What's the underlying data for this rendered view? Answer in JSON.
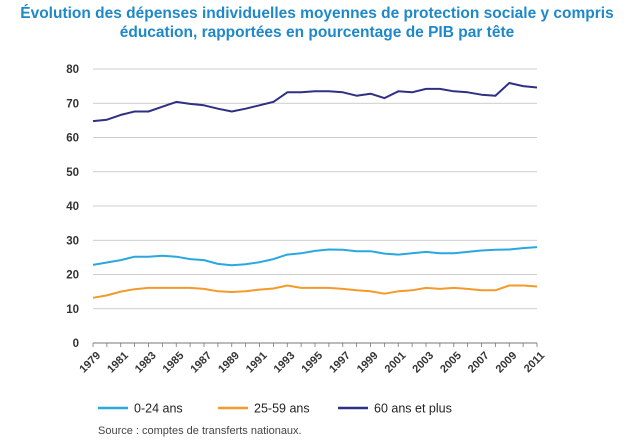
{
  "title_line1": "Évolution des dépenses individuelles moyennes de protection sociale y compris",
  "title_line2": "éducation, rapportées en pourcentage de PIB par tête",
  "source": "Source : comptes de transferts nationaux.",
  "chart_data": {
    "type": "line",
    "title": "Évolution des dépenses individuelles moyennes de protection sociale y compris éducation, rapportées en pourcentage de PIB par tête",
    "xlabel": "",
    "ylabel": "",
    "ylim": [
      0,
      80
    ],
    "yticks": [
      0,
      10,
      20,
      30,
      40,
      50,
      60,
      70,
      80
    ],
    "x": [
      1979,
      1980,
      1981,
      1982,
      1983,
      1984,
      1985,
      1986,
      1987,
      1988,
      1989,
      1990,
      1991,
      1992,
      1993,
      1994,
      1995,
      1996,
      1997,
      1998,
      1999,
      2000,
      2001,
      2002,
      2003,
      2004,
      2005,
      2006,
      2007,
      2008,
      2009,
      2010,
      2011
    ],
    "xtick_labels": [
      "1979",
      "1981",
      "1983",
      "1985",
      "1987",
      "1989",
      "1991",
      "1993",
      "1995",
      "1997",
      "1999",
      "2001",
      "2003",
      "2005",
      "2007",
      "2009",
      "2011"
    ],
    "grid": true,
    "legend_position": "bottom",
    "series": [
      {
        "name": "0-24 ans",
        "color": "#29a8e0",
        "values": [
          22.8,
          23.5,
          24.2,
          25.2,
          25.2,
          25.5,
          25.2,
          24.5,
          24.2,
          23.1,
          22.7,
          23.0,
          23.6,
          24.5,
          25.8,
          26.2,
          26.9,
          27.3,
          27.2,
          26.8,
          26.8,
          26.1,
          25.8,
          26.2,
          26.6,
          26.2,
          26.2,
          26.6,
          27.0,
          27.2,
          27.3,
          27.7,
          28.0
        ]
      },
      {
        "name": "25-59 ans",
        "color": "#f39a2b",
        "values": [
          13.2,
          13.9,
          15.0,
          15.7,
          16.1,
          16.1,
          16.1,
          16.1,
          15.8,
          15.1,
          14.9,
          15.1,
          15.6,
          15.9,
          16.8,
          16.1,
          16.1,
          16.1,
          15.8,
          15.4,
          15.1,
          14.4,
          15.1,
          15.4,
          16.1,
          15.8,
          16.1,
          15.8,
          15.4,
          15.4,
          16.8,
          16.8,
          16.5
        ]
      },
      {
        "name": "60 ans et plus",
        "color": "#2e3182",
        "values": [
          64.8,
          65.2,
          66.6,
          67.6,
          67.6,
          69.0,
          70.4,
          69.8,
          69.4,
          68.4,
          67.6,
          68.4,
          69.4,
          70.4,
          73.2,
          73.2,
          73.5,
          73.5,
          73.2,
          72.2,
          72.8,
          71.5,
          73.5,
          73.2,
          74.2,
          74.2,
          73.5,
          73.2,
          72.5,
          72.2,
          75.9,
          75.0,
          74.6
        ]
      }
    ]
  }
}
